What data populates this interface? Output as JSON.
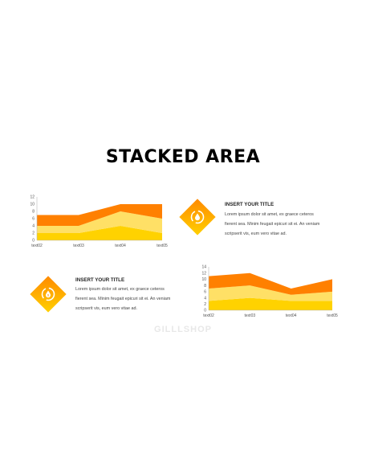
{
  "page": {
    "title": "STACKED AREA",
    "watermark": "GILLLSHOP"
  },
  "colors": {
    "dark": "#FF8000",
    "mid": "#FFE066",
    "light": "#FFD200",
    "axis": "#BBBBBB"
  },
  "items": [
    {
      "title": "INSERT YOUR TITLE",
      "text": [
        "Lorem ipsum dolor sit amet, ex graece ceteros",
        "fierent sea. Minim feugait epicuri sit ei. An veniam",
        "scripserit vis, eum vero vitae ad."
      ],
      "icon": "water-drop-cycle-icon"
    },
    {
      "title": "INSERT YOUR TITLE",
      "text": [
        "Lorem ipsum dolor sit amet, ex graece ceteros",
        "fierent sea. Minim feugait epicuri sit ei. An veniam",
        "scripserit vis, eum vero vitae ad."
      ],
      "icon": "money-drop-cycle-icon"
    }
  ],
  "chart_data": [
    {
      "type": "area",
      "stacked": true,
      "categories": [
        "text02",
        "text03",
        "text04",
        "text05"
      ],
      "series": [
        {
          "values": [
            2,
            2,
            4,
            2
          ]
        },
        {
          "values": [
            2,
            2,
            4,
            4
          ]
        },
        {
          "values": [
            3,
            3,
            2,
            4
          ]
        }
      ],
      "ylim": [
        0,
        12
      ],
      "yticks": [
        0,
        2,
        4,
        6,
        8,
        10,
        12
      ]
    },
    {
      "type": "area",
      "stacked": true,
      "categories": [
        "text02",
        "text03",
        "text04",
        "text05"
      ],
      "series": [
        {
          "values": [
            3,
            4,
            3,
            3
          ]
        },
        {
          "values": [
            4,
            4,
            2,
            3
          ]
        },
        {
          "values": [
            4,
            4,
            2,
            4
          ]
        }
      ],
      "ylim": [
        0,
        14
      ],
      "yticks": [
        0,
        2,
        4,
        6,
        8,
        10,
        12,
        14
      ]
    }
  ]
}
